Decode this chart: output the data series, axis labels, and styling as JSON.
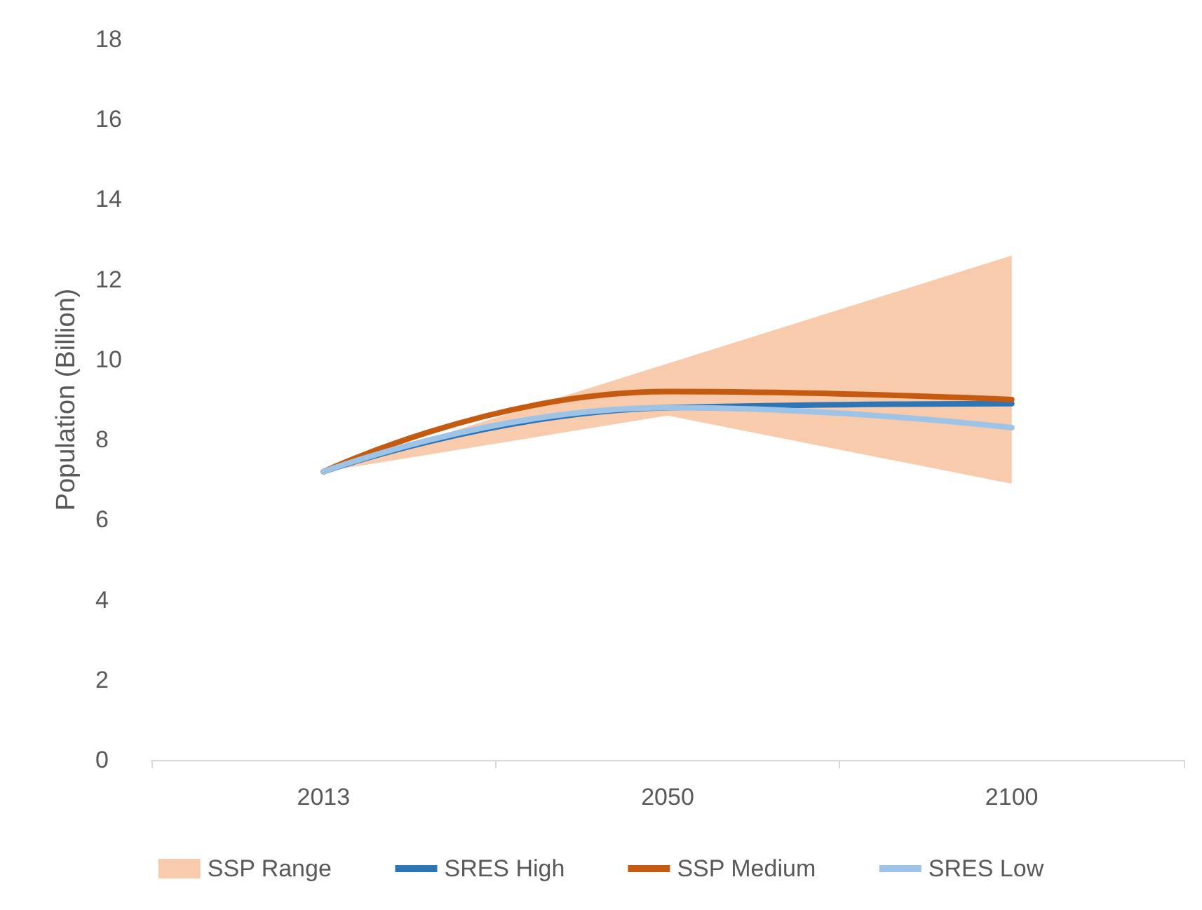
{
  "chart_data": {
    "type": "line",
    "ylabel": "Population (Billion)",
    "categories": [
      "2013",
      "2050",
      "2100"
    ],
    "ylim": [
      0,
      18
    ],
    "yticks": [
      0,
      2,
      4,
      6,
      8,
      10,
      12,
      14,
      16,
      18
    ],
    "grid": false,
    "legend": "bottom",
    "marker": "none",
    "line_style": "solid",
    "series": [
      {
        "name": "SSP Range",
        "type": "area",
        "color": "#f8cbad",
        "values": [
          null,
          null,
          null
        ],
        "lower": [
          7.2,
          8.6,
          6.9
        ],
        "upper": [
          7.2,
          9.9,
          12.6
        ]
      },
      {
        "name": "SRES High",
        "color": "#2e75b6",
        "values": [
          7.2,
          8.8,
          8.9
        ]
      },
      {
        "name": "SSP Medium",
        "color": "#c55a11",
        "values": [
          7.2,
          9.2,
          9.0
        ]
      },
      {
        "name": "SRES Low",
        "color": "#9dc3e6",
        "values": [
          7.2,
          8.8,
          8.3
        ]
      }
    ]
  }
}
